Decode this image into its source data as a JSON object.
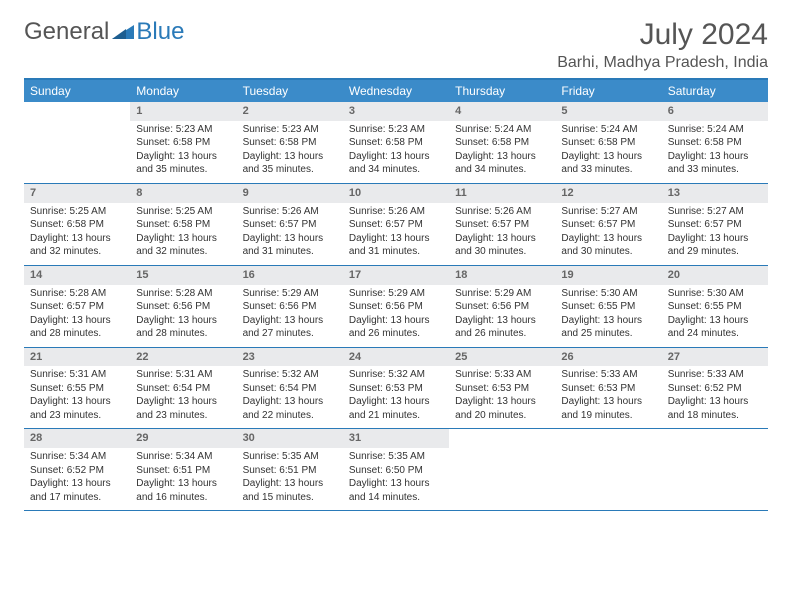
{
  "logo": {
    "text1": "General",
    "text2": "Blue"
  },
  "title": "July 2024",
  "location": "Barhi, Madhya Pradesh, India",
  "colors": {
    "header_bar": "#3b8bc9",
    "border": "#2a7ab8",
    "daynum_bg": "#e9eaec",
    "text": "#333333",
    "muted": "#666666"
  },
  "day_names": [
    "Sunday",
    "Monday",
    "Tuesday",
    "Wednesday",
    "Thursday",
    "Friday",
    "Saturday"
  ],
  "weeks": [
    [
      {
        "n": "",
        "sunrise": "",
        "sunset": "",
        "daylight": ""
      },
      {
        "n": "1",
        "sunrise": "Sunrise: 5:23 AM",
        "sunset": "Sunset: 6:58 PM",
        "daylight": "Daylight: 13 hours and 35 minutes."
      },
      {
        "n": "2",
        "sunrise": "Sunrise: 5:23 AM",
        "sunset": "Sunset: 6:58 PM",
        "daylight": "Daylight: 13 hours and 35 minutes."
      },
      {
        "n": "3",
        "sunrise": "Sunrise: 5:23 AM",
        "sunset": "Sunset: 6:58 PM",
        "daylight": "Daylight: 13 hours and 34 minutes."
      },
      {
        "n": "4",
        "sunrise": "Sunrise: 5:24 AM",
        "sunset": "Sunset: 6:58 PM",
        "daylight": "Daylight: 13 hours and 34 minutes."
      },
      {
        "n": "5",
        "sunrise": "Sunrise: 5:24 AM",
        "sunset": "Sunset: 6:58 PM",
        "daylight": "Daylight: 13 hours and 33 minutes."
      },
      {
        "n": "6",
        "sunrise": "Sunrise: 5:24 AM",
        "sunset": "Sunset: 6:58 PM",
        "daylight": "Daylight: 13 hours and 33 minutes."
      }
    ],
    [
      {
        "n": "7",
        "sunrise": "Sunrise: 5:25 AM",
        "sunset": "Sunset: 6:58 PM",
        "daylight": "Daylight: 13 hours and 32 minutes."
      },
      {
        "n": "8",
        "sunrise": "Sunrise: 5:25 AM",
        "sunset": "Sunset: 6:58 PM",
        "daylight": "Daylight: 13 hours and 32 minutes."
      },
      {
        "n": "9",
        "sunrise": "Sunrise: 5:26 AM",
        "sunset": "Sunset: 6:57 PM",
        "daylight": "Daylight: 13 hours and 31 minutes."
      },
      {
        "n": "10",
        "sunrise": "Sunrise: 5:26 AM",
        "sunset": "Sunset: 6:57 PM",
        "daylight": "Daylight: 13 hours and 31 minutes."
      },
      {
        "n": "11",
        "sunrise": "Sunrise: 5:26 AM",
        "sunset": "Sunset: 6:57 PM",
        "daylight": "Daylight: 13 hours and 30 minutes."
      },
      {
        "n": "12",
        "sunrise": "Sunrise: 5:27 AM",
        "sunset": "Sunset: 6:57 PM",
        "daylight": "Daylight: 13 hours and 30 minutes."
      },
      {
        "n": "13",
        "sunrise": "Sunrise: 5:27 AM",
        "sunset": "Sunset: 6:57 PM",
        "daylight": "Daylight: 13 hours and 29 minutes."
      }
    ],
    [
      {
        "n": "14",
        "sunrise": "Sunrise: 5:28 AM",
        "sunset": "Sunset: 6:57 PM",
        "daylight": "Daylight: 13 hours and 28 minutes."
      },
      {
        "n": "15",
        "sunrise": "Sunrise: 5:28 AM",
        "sunset": "Sunset: 6:56 PM",
        "daylight": "Daylight: 13 hours and 28 minutes."
      },
      {
        "n": "16",
        "sunrise": "Sunrise: 5:29 AM",
        "sunset": "Sunset: 6:56 PM",
        "daylight": "Daylight: 13 hours and 27 minutes."
      },
      {
        "n": "17",
        "sunrise": "Sunrise: 5:29 AM",
        "sunset": "Sunset: 6:56 PM",
        "daylight": "Daylight: 13 hours and 26 minutes."
      },
      {
        "n": "18",
        "sunrise": "Sunrise: 5:29 AM",
        "sunset": "Sunset: 6:56 PM",
        "daylight": "Daylight: 13 hours and 26 minutes."
      },
      {
        "n": "19",
        "sunrise": "Sunrise: 5:30 AM",
        "sunset": "Sunset: 6:55 PM",
        "daylight": "Daylight: 13 hours and 25 minutes."
      },
      {
        "n": "20",
        "sunrise": "Sunrise: 5:30 AM",
        "sunset": "Sunset: 6:55 PM",
        "daylight": "Daylight: 13 hours and 24 minutes."
      }
    ],
    [
      {
        "n": "21",
        "sunrise": "Sunrise: 5:31 AM",
        "sunset": "Sunset: 6:55 PM",
        "daylight": "Daylight: 13 hours and 23 minutes."
      },
      {
        "n": "22",
        "sunrise": "Sunrise: 5:31 AM",
        "sunset": "Sunset: 6:54 PM",
        "daylight": "Daylight: 13 hours and 23 minutes."
      },
      {
        "n": "23",
        "sunrise": "Sunrise: 5:32 AM",
        "sunset": "Sunset: 6:54 PM",
        "daylight": "Daylight: 13 hours and 22 minutes."
      },
      {
        "n": "24",
        "sunrise": "Sunrise: 5:32 AM",
        "sunset": "Sunset: 6:53 PM",
        "daylight": "Daylight: 13 hours and 21 minutes."
      },
      {
        "n": "25",
        "sunrise": "Sunrise: 5:33 AM",
        "sunset": "Sunset: 6:53 PM",
        "daylight": "Daylight: 13 hours and 20 minutes."
      },
      {
        "n": "26",
        "sunrise": "Sunrise: 5:33 AM",
        "sunset": "Sunset: 6:53 PM",
        "daylight": "Daylight: 13 hours and 19 minutes."
      },
      {
        "n": "27",
        "sunrise": "Sunrise: 5:33 AM",
        "sunset": "Sunset: 6:52 PM",
        "daylight": "Daylight: 13 hours and 18 minutes."
      }
    ],
    [
      {
        "n": "28",
        "sunrise": "Sunrise: 5:34 AM",
        "sunset": "Sunset: 6:52 PM",
        "daylight": "Daylight: 13 hours and 17 minutes."
      },
      {
        "n": "29",
        "sunrise": "Sunrise: 5:34 AM",
        "sunset": "Sunset: 6:51 PM",
        "daylight": "Daylight: 13 hours and 16 minutes."
      },
      {
        "n": "30",
        "sunrise": "Sunrise: 5:35 AM",
        "sunset": "Sunset: 6:51 PM",
        "daylight": "Daylight: 13 hours and 15 minutes."
      },
      {
        "n": "31",
        "sunrise": "Sunrise: 5:35 AM",
        "sunset": "Sunset: 6:50 PM",
        "daylight": "Daylight: 13 hours and 14 minutes."
      },
      {
        "n": "",
        "sunrise": "",
        "sunset": "",
        "daylight": ""
      },
      {
        "n": "",
        "sunrise": "",
        "sunset": "",
        "daylight": ""
      },
      {
        "n": "",
        "sunrise": "",
        "sunset": "",
        "daylight": ""
      }
    ]
  ]
}
